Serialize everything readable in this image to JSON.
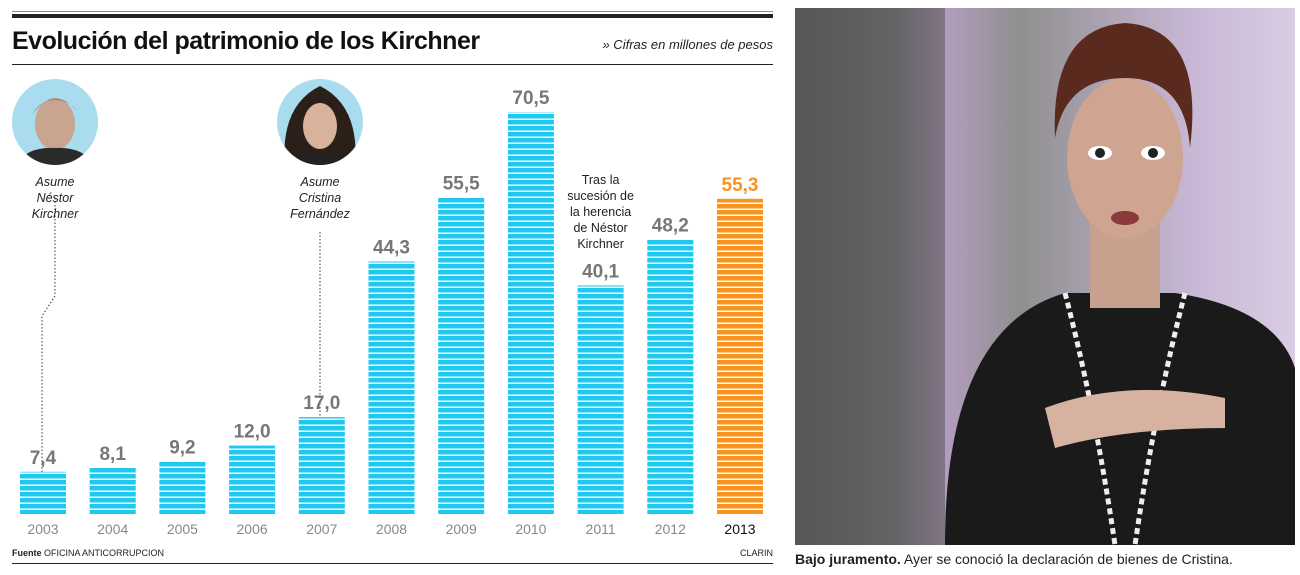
{
  "header": {
    "title": "Evolución del patrimonio de los Kirchner",
    "unit_note": "» Cifras en millones de pesos"
  },
  "annotations": [
    {
      "text": [
        "Asume",
        "Néstor",
        "Kirchner"
      ],
      "year": "2003"
    },
    {
      "text": [
        "Asume",
        "Cristina",
        "Fernández"
      ],
      "year": "2007"
    },
    {
      "text": [
        "Tras la",
        "sucesión de",
        "la herencia",
        "de Néstor",
        "Kirchner"
      ],
      "year": "2011"
    }
  ],
  "footer": {
    "source_label": "Fuente",
    "source": "OFICINA ANTICORRUPCION",
    "brand": "CLARIN"
  },
  "photo": {
    "caption_bold": "Bajo juramento.",
    "caption": " Ayer se conoció la declaración de bienes de Cristina."
  },
  "colors": {
    "bar": "#1ec8f0",
    "highlight": "#f7931e",
    "label": "#777777"
  },
  "chart_data": {
    "type": "bar",
    "title": "Evolución del patrimonio de los Kirchner",
    "subtitle": "Cifras en millones de pesos",
    "categories": [
      "2003",
      "2004",
      "2005",
      "2006",
      "2007",
      "2008",
      "2009",
      "2010",
      "2011",
      "2012",
      "2013"
    ],
    "values": [
      7.4,
      8.1,
      9.2,
      12.0,
      17.0,
      44.3,
      55.5,
      70.5,
      40.1,
      48.2,
      55.3
    ],
    "value_labels": [
      "7,4",
      "8,1",
      "9,2",
      "12,0",
      "17,0",
      "44,3",
      "55,5",
      "70,5",
      "40,1",
      "48,2",
      "55,3"
    ],
    "highlight": "2013",
    "grid": false
  }
}
